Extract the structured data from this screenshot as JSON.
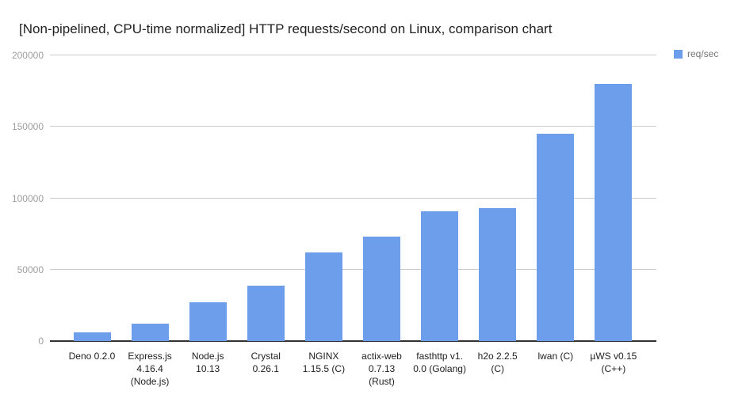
{
  "title": "[Non-pipelined, CPU-time normalized] HTTP requests/second on Linux, comparison chart",
  "legend": {
    "label": "req/sec",
    "position": "top-right"
  },
  "colors": {
    "bar": "#6d9eeb",
    "gridline": "#cccccc",
    "baseline": "#333333",
    "y_tick_text": "#9e9e9e",
    "category_text": "#212121",
    "title_text": "#212121",
    "legend_text": "#757575",
    "background": "#ffffff"
  },
  "chart_data": {
    "type": "bar",
    "title": "[Non-pipelined, CPU-time normalized] HTTP requests/second on Linux, comparison chart",
    "categories": [
      "Deno 0.2.0",
      "Express.js 4.16.4 (Node.js)",
      "Node.js 10.13",
      "Crystal 0.26.1",
      "NGINX 1.15.5 (C)",
      "actix-web 0.7.13 (Rust)",
      "fasthttp v1.0.0 (Golang)",
      "h2o 2.2.5 (C)",
      "lwan (C)",
      "µWS v0.15 (C++)"
    ],
    "category_labels_wrapped": [
      "Deno 0.2.0",
      "Express.js\n4.16.4\n(Node.js)",
      "Node.js\n10.13",
      "Crystal\n0.26.1",
      "NGINX\n1.15.5 (C)",
      "actix-web\n0.7.13\n(Rust)",
      "fasthttp v1.\n0.0 (Golang)",
      "h2o 2.2.5\n(C)",
      "lwan (C)",
      "µWS v0.15\n(C++)"
    ],
    "series": [
      {
        "name": "req/sec",
        "values": [
          6000,
          12000,
          27000,
          39000,
          62000,
          73000,
          91000,
          93000,
          145000,
          180000
        ]
      }
    ],
    "xlabel": "",
    "ylabel": "",
    "ylim": [
      0,
      200000
    ],
    "y_ticks": [
      0,
      50000,
      100000,
      150000,
      200000
    ],
    "y_tick_labels": [
      "0",
      "50000",
      "100000",
      "150000",
      "200000"
    ],
    "grid": true,
    "legend": {
      "label": "req/sec",
      "position": "top-right"
    }
  }
}
